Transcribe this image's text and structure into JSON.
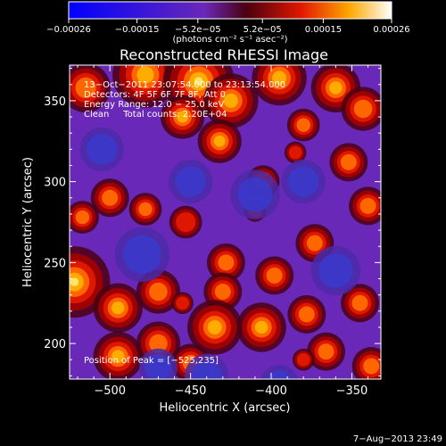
{
  "chart_data": {
    "type": "heatmap",
    "title": "Reconstructed RHESSI Image",
    "xlabel": "Heliocentric X (arcsec)",
    "ylabel": "Heliocentric Y (arcsec)",
    "xlim": [
      -525,
      -332
    ],
    "ylim": [
      178,
      372
    ],
    "x_ticks": [
      -500,
      -450,
      -400,
      -350
    ],
    "y_ticks": [
      200,
      250,
      300,
      350
    ],
    "x_tick_labels": [
      "−500",
      "−450",
      "−400",
      "−350"
    ],
    "y_tick_labels": [
      "200",
      "250",
      "300",
      "350"
    ],
    "colorbar": {
      "range": [
        -0.00026,
        0.00026
      ],
      "tick_labels": [
        "−0.00026",
        "−0.00015",
        "−5.2e−05",
        "5.2e−05",
        "0.00015",
        "0.00026"
      ],
      "unit_label": "(photons cm⁻² s⁻¹ asec⁻²)"
    },
    "annotations": [
      "13−Oct−2011 23:07:54.000 to 23:13:54.000",
      "Detectors: 4F 5F 6F 7F 8F, Att 0",
      "Energy Range: 12.0 − 25.0 keV",
      "Clean     Total counts: 2.20E+04"
    ],
    "peak_label": "Position of Peak = [−525,235]",
    "peak": {
      "x": -525,
      "y": 235
    },
    "blobs": [
      {
        "x": -515,
        "y": 358,
        "r": 9,
        "v": 0.6
      },
      {
        "x": -478,
        "y": 366,
        "r": 12,
        "v": 0.8
      },
      {
        "x": -445,
        "y": 362,
        "r": 13,
        "v": 1.0
      },
      {
        "x": -425,
        "y": 350,
        "r": 10,
        "v": 0.85
      },
      {
        "x": -395,
        "y": 364,
        "r": 10,
        "v": 0.75
      },
      {
        "x": -360,
        "y": 358,
        "r": 9,
        "v": 0.7
      },
      {
        "x": -343,
        "y": 345,
        "r": 8,
        "v": 0.6
      },
      {
        "x": -455,
        "y": 340,
        "r": 8,
        "v": 0.7
      },
      {
        "x": -432,
        "y": 325,
        "r": 8,
        "v": 0.75
      },
      {
        "x": -380,
        "y": 335,
        "r": 6,
        "v": 0.55
      },
      {
        "x": -352,
        "y": 312,
        "r": 7,
        "v": 0.65
      },
      {
        "x": -500,
        "y": 290,
        "r": 7,
        "v": 0.6
      },
      {
        "x": -478,
        "y": 283,
        "r": 6,
        "v": 0.55
      },
      {
        "x": -517,
        "y": 278,
        "r": 6,
        "v": 0.55
      },
      {
        "x": -405,
        "y": 300,
        "r": 6,
        "v": 0.5
      },
      {
        "x": -340,
        "y": 285,
        "r": 7,
        "v": 0.6
      },
      {
        "x": -453,
        "y": 275,
        "r": 6,
        "v": 0.5
      },
      {
        "x": -373,
        "y": 262,
        "r": 7,
        "v": 0.55
      },
      {
        "x": -522,
        "y": 238,
        "r": 13,
        "v": 1.0
      },
      {
        "x": -495,
        "y": 222,
        "r": 9,
        "v": 0.8
      },
      {
        "x": -470,
        "y": 232,
        "r": 8,
        "v": 0.65
      },
      {
        "x": -428,
        "y": 250,
        "r": 7,
        "v": 0.6
      },
      {
        "x": -430,
        "y": 232,
        "r": 7,
        "v": 0.6
      },
      {
        "x": -398,
        "y": 242,
        "r": 7,
        "v": 0.55
      },
      {
        "x": -435,
        "y": 210,
        "r": 10,
        "v": 0.85
      },
      {
        "x": -406,
        "y": 210,
        "r": 9,
        "v": 0.8
      },
      {
        "x": -378,
        "y": 218,
        "r": 7,
        "v": 0.6
      },
      {
        "x": -345,
        "y": 225,
        "r": 7,
        "v": 0.6
      },
      {
        "x": -470,
        "y": 200,
        "r": 8,
        "v": 0.65
      },
      {
        "x": -495,
        "y": 192,
        "r": 9,
        "v": 0.8
      },
      {
        "x": -450,
        "y": 188,
        "r": 7,
        "v": 0.6
      },
      {
        "x": -366,
        "y": 195,
        "r": 7,
        "v": 0.65
      },
      {
        "x": -338,
        "y": 186,
        "r": 7,
        "v": 0.6
      },
      {
        "x": -385,
        "y": 318,
        "r": 4,
        "v": 0.45
      },
      {
        "x": -410,
        "y": 282,
        "r": 4,
        "v": 0.45
      },
      {
        "x": -455,
        "y": 225,
        "r": 4,
        "v": 0.4
      },
      {
        "x": -380,
        "y": 190,
        "r": 4,
        "v": 0.45
      },
      {
        "x": -410,
        "y": 292,
        "r": 9,
        "v": -0.6
      },
      {
        "x": -450,
        "y": 300,
        "r": 8,
        "v": -0.5
      },
      {
        "x": -380,
        "y": 300,
        "r": 8,
        "v": -0.5
      },
      {
        "x": -480,
        "y": 255,
        "r": 10,
        "v": -0.6
      },
      {
        "x": -440,
        "y": 180,
        "r": 8,
        "v": -0.5
      },
      {
        "x": -360,
        "y": 245,
        "r": 9,
        "v": -0.5
      },
      {
        "x": -505,
        "y": 320,
        "r": 8,
        "v": -0.5
      },
      {
        "x": -470,
        "y": 185,
        "r": 7,
        "v": -0.5
      },
      {
        "x": -395,
        "y": 175,
        "r": 7,
        "v": -0.4
      }
    ],
    "footer_date": "7−Aug−2013 23:49"
  }
}
